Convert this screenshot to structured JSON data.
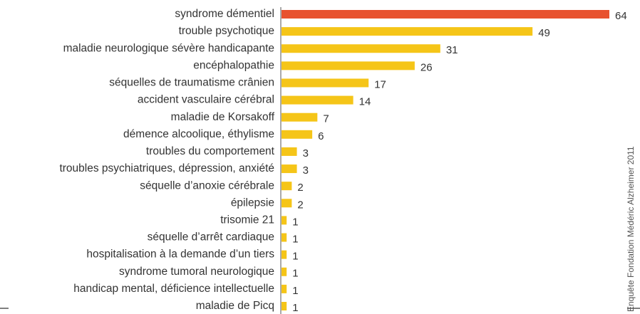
{
  "chart_data": {
    "type": "bar",
    "orientation": "horizontal",
    "categories": [
      "syndrome démentiel",
      "trouble psychotique",
      "maladie neurologique sévère handicapante",
      "encéphalopathie",
      "séquelles de traumatisme crânien",
      "accident vasculaire cérébral",
      "maladie de Korsakoff",
      "démence alcoolique, éthylisme",
      "troubles du comportement",
      "troubles psychiatriques, dépression, anxiété",
      "séquelle d’anoxie cérébrale",
      "épilepsie",
      "trisomie 21",
      "séquelle d’arrêt cardiaque",
      "hospitalisation à la demande d’un tiers",
      "syndrome tumoral neurologique",
      "handicap mental, déficience intellectuelle",
      "maladie de Picq"
    ],
    "values": [
      64,
      49,
      31,
      26,
      17,
      14,
      7,
      6,
      3,
      3,
      2,
      2,
      1,
      1,
      1,
      1,
      1,
      1
    ],
    "colors": [
      "#e8522f",
      "#f5c518",
      "#f5c518",
      "#f5c518",
      "#f5c518",
      "#f5c518",
      "#f5c518",
      "#f5c518",
      "#f5c518",
      "#f5c518",
      "#f5c518",
      "#f5c518",
      "#f5c518",
      "#f5c518",
      "#f5c518",
      "#f5c518",
      "#f5c518",
      "#f5c518"
    ],
    "source": "Enquête Fondation Médéric Alzheimer 2011"
  }
}
